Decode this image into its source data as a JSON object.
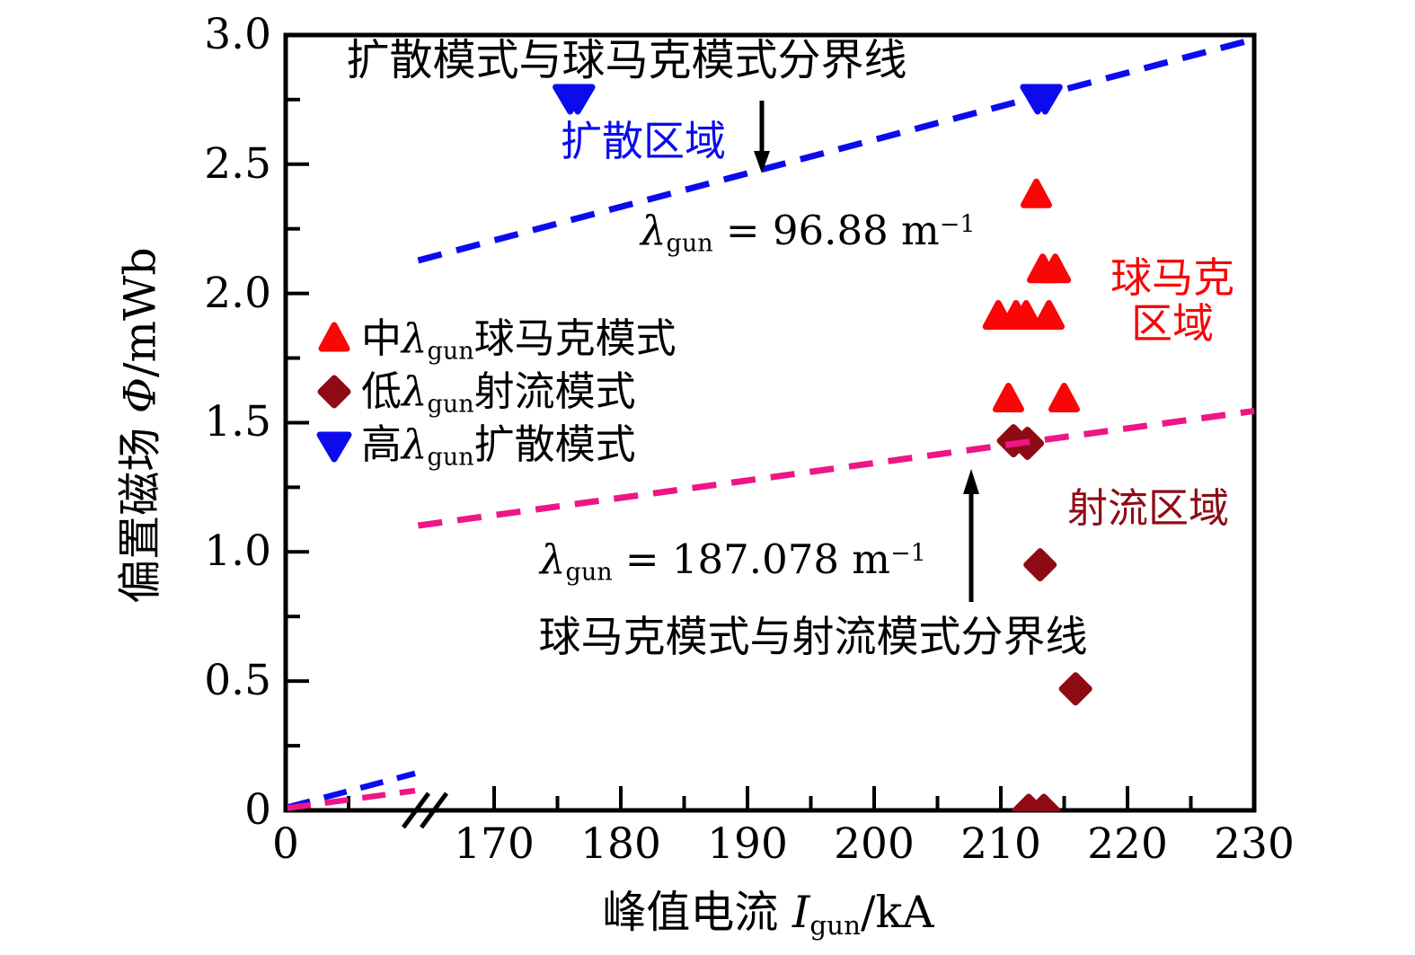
{
  "annotations": {
    "top_boundary": "扩散模式与球马克模式分界线",
    "diffusion_region": "扩散区域",
    "lambda96": {
      "lam": "λ",
      "sub": "gun",
      "eq": " = 96.88 m",
      "sup": "−1"
    },
    "spheromak_region_line1": "球马克",
    "spheromak_region_line2": "区域",
    "jet_region": "射流区域",
    "lambda187": {
      "lam": "λ",
      "sub": "gun",
      "eq": " = 187.078 m",
      "sup": "−1"
    },
    "bottom_boundary": "球马克模式与射流模式分界线"
  },
  "legend": {
    "items": [
      {
        "pre": "中",
        "lam": "λ",
        "sub": "gun",
        "post": "球马克模式",
        "marker": "triangle-up-icon",
        "color": "#f90606"
      },
      {
        "pre": "低",
        "lam": "λ",
        "sub": "gun",
        "post": "射流模式",
        "marker": "diamond-icon",
        "color": "#8e0b15"
      },
      {
        "pre": "高",
        "lam": "λ",
        "sub": "gun",
        "post": "扩散模式",
        "marker": "triangle-down-icon",
        "color": "#0b0bee"
      }
    ]
  },
  "axes": {
    "x": {
      "pre": "峰值电流 ",
      "var": "I",
      "sub": "gun",
      "post": "/kA",
      "ticks": [
        "0",
        "170",
        "180",
        "190",
        "200",
        "210",
        "220",
        "230"
      ]
    },
    "y": {
      "pre": "偏置磁场 ",
      "var": "Φ",
      "post": "/mWb",
      "ticks": [
        "3.0",
        "2.5",
        "2.0",
        "1.5",
        "1.0",
        "0.5",
        "0"
      ]
    }
  },
  "chart_data": {
    "type": "scatter",
    "title": "",
    "xlabel": "峰值电流 Igun/kA",
    "ylabel": "偏置磁场 Φ/mWb",
    "x_axis_break": true,
    "xlim_main": [
      164,
      230
    ],
    "ylim": [
      0,
      3.0
    ],
    "x_tick_values_main": [
      170,
      180,
      190,
      200,
      210,
      220,
      230
    ],
    "x_minor_ticks_main": [
      175,
      185,
      195,
      205,
      215,
      225
    ],
    "y_tick_values": [
      0,
      0.5,
      1.0,
      1.5,
      2.0,
      2.5,
      3.0
    ],
    "y_minor_ticks": [
      0.25,
      0.75,
      1.25,
      1.75,
      2.25,
      2.75
    ],
    "grid": false,
    "legend_position": "inside-left-middle",
    "series": [
      {
        "name": "中λgun球马克模式",
        "marker": "triangle-up",
        "color": "#f90606",
        "points": [
          [
            212.8,
            2.38
          ],
          [
            213.3,
            2.09
          ],
          [
            214.3,
            2.09
          ],
          [
            209.8,
            1.91
          ],
          [
            211.2,
            1.91
          ],
          [
            212.0,
            1.91
          ],
          [
            213.8,
            1.91
          ],
          [
            210.6,
            1.59
          ],
          [
            215.0,
            1.59
          ]
        ]
      },
      {
        "name": "低λgun射流模式",
        "marker": "diamond",
        "color": "#8e0b15",
        "points": [
          [
            211.0,
            1.43
          ],
          [
            212.1,
            1.42
          ],
          [
            213.1,
            0.95
          ],
          [
            215.9,
            0.47
          ],
          [
            212.2,
            0.0
          ],
          [
            213.4,
            0.0
          ]
        ]
      },
      {
        "name": "高λgun扩散模式",
        "marker": "triangle-down",
        "color": "#0b0bee",
        "points": [
          [
            176.0,
            2.76
          ],
          [
            176.6,
            2.76
          ],
          [
            212.9,
            2.76
          ],
          [
            213.5,
            2.76
          ]
        ]
      }
    ],
    "boundary_lines": [
      {
        "name": "扩散模式与球马克模式分界线",
        "lambda": "96.88",
        "unit": "m−1",
        "color": "#0b0bee",
        "style": "dashed",
        "slope_mwb_per_ka": 0.012972,
        "x_range": [
          164,
          230
        ],
        "origin_stub": true
      },
      {
        "name": "球马克模式与射流模式分界线",
        "lambda": "187.078",
        "unit": "m−1",
        "color": "#ee1687",
        "style": "dashed",
        "slope_mwb_per_ka": 0.006718,
        "x_range": [
          164,
          230
        ],
        "origin_stub": true
      }
    ],
    "region_labels": [
      {
        "text": "扩散区域",
        "color": "#0b0bee",
        "near": [
          176,
          2.6
        ]
      },
      {
        "text": "球马克 区域",
        "color": "#f90606",
        "near": [
          224,
          2.0
        ]
      },
      {
        "text": "射流区域",
        "color": "#8e0b15",
        "near": [
          222,
          1.2
        ]
      }
    ]
  },
  "colors": {
    "spheromak_red": "#f90606",
    "jet_darkred": "#8e0b15",
    "diffusion_blue": "#0b0bee",
    "boundary_pink": "#ee1687",
    "axis_black": "#000000"
  }
}
